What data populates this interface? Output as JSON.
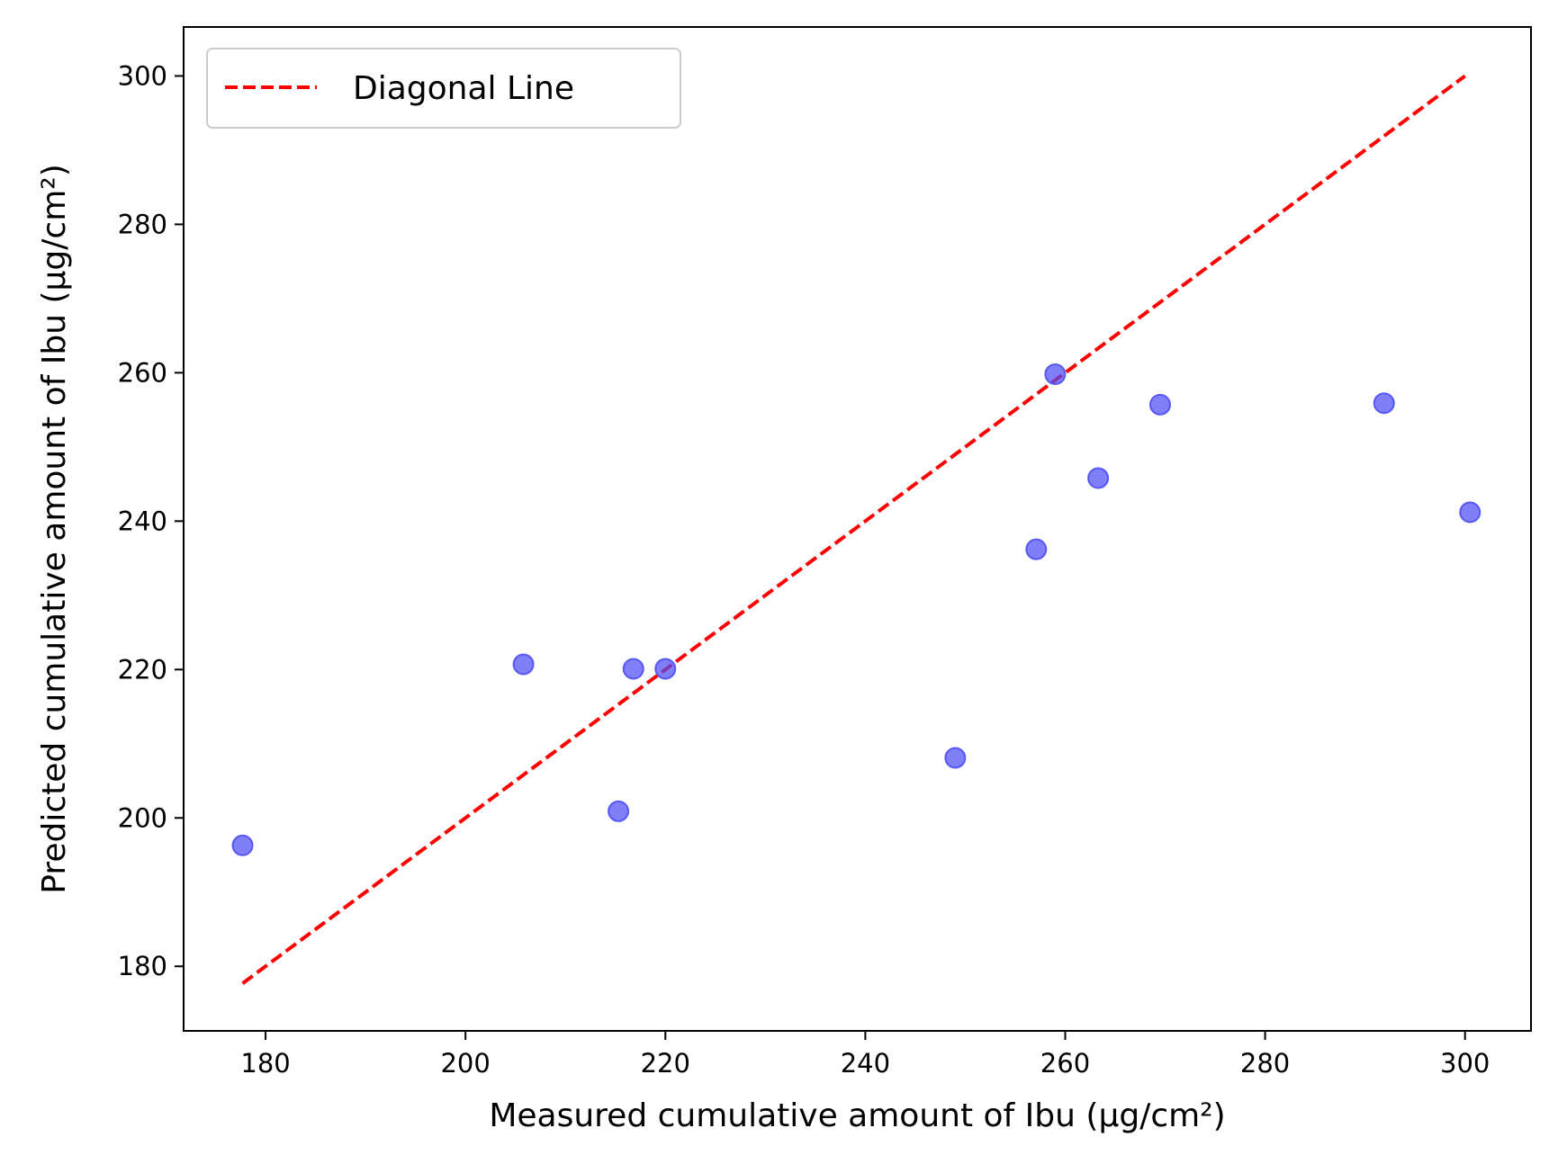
{
  "chart_data": {
    "type": "scatter",
    "xlabel": "Measured cumulative amount of Ibu (µg/cm²)",
    "ylabel": "Predicted cumulative amount of Ibu (µg/cm²)",
    "xlim": [
      171.8,
      306.6
    ],
    "ylim": [
      171.3,
      306.6
    ],
    "x_ticks": [
      180,
      200,
      220,
      240,
      260,
      280,
      300
    ],
    "y_ticks": [
      180,
      200,
      220,
      240,
      260,
      280,
      300
    ],
    "grid": false,
    "legend_position": "upper-left",
    "series": [
      {
        "type": "scatter",
        "color": "#4d4df5",
        "points": [
          {
            "x": 177.7,
            "y": 196.3
          },
          {
            "x": 205.8,
            "y": 220.7
          },
          {
            "x": 215.3,
            "y": 200.9
          },
          {
            "x": 216.8,
            "y": 220.1
          },
          {
            "x": 220.0,
            "y": 220.1
          },
          {
            "x": 249.0,
            "y": 208.1
          },
          {
            "x": 257.1,
            "y": 236.2
          },
          {
            "x": 259.0,
            "y": 259.8
          },
          {
            "x": 263.3,
            "y": 245.8
          },
          {
            "x": 269.5,
            "y": 255.7
          },
          {
            "x": 291.9,
            "y": 255.9
          },
          {
            "x": 300.5,
            "y": 241.2
          }
        ]
      },
      {
        "name": "Diagonal Line",
        "type": "line",
        "style": "dashed",
        "color": "#ff0000",
        "points": [
          {
            "x": 177.7,
            "y": 177.7
          },
          {
            "x": 300.0,
            "y": 300.0
          }
        ]
      }
    ]
  }
}
